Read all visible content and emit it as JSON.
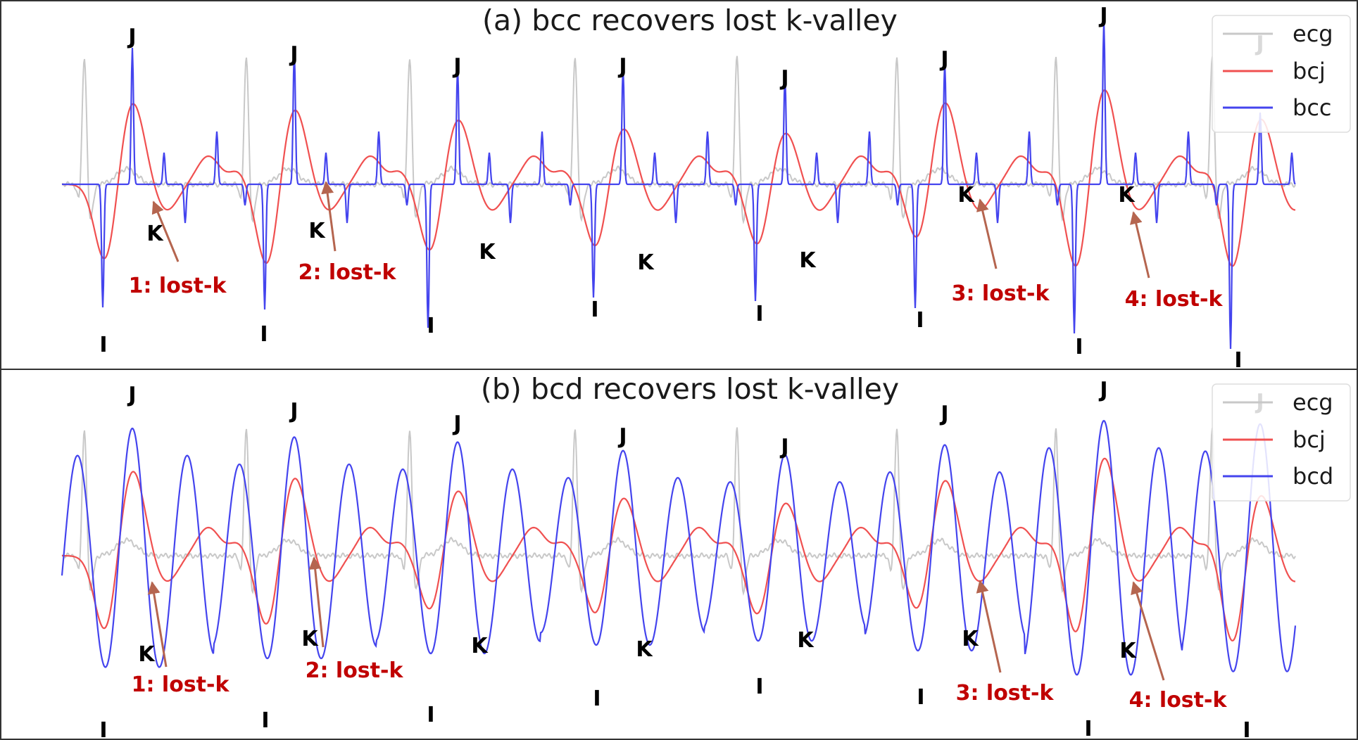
{
  "chart_data": [
    {
      "type": "line",
      "title": "(a) bcc recovers lost k-valley",
      "xlabel": "",
      "ylabel": "",
      "grid": false,
      "legend_placement": "top-right",
      "series": [
        {
          "name": "ecg",
          "color": "#c8c8c8"
        },
        {
          "name": "bcj",
          "color": "#f05050"
        },
        {
          "name": "bcc",
          "color": "#4444ee"
        }
      ],
      "beats": [
        {
          "j_label": "J",
          "k_label": "K",
          "i_label": "I",
          "lost_k": "1: lost-k"
        },
        {
          "j_label": "J",
          "k_label": "K",
          "i_label": "I",
          "lost_k": "2: lost-k"
        },
        {
          "j_label": "J",
          "k_label": "K",
          "i_label": "I",
          "lost_k": ""
        },
        {
          "j_label": "J",
          "k_label": "K",
          "i_label": "I",
          "lost_k": ""
        },
        {
          "j_label": "J",
          "k_label": "K",
          "i_label": "I",
          "lost_k": ""
        },
        {
          "j_label": "J",
          "k_label": "K",
          "i_label": "I",
          "lost_k": "3: lost-k"
        },
        {
          "j_label": "J",
          "k_label": "K",
          "i_label": "I",
          "lost_k": "4: lost-k"
        },
        {
          "j_label": "J",
          "k_label": "",
          "i_label": "I",
          "lost_k": ""
        }
      ]
    },
    {
      "type": "line",
      "title": "(b) bcd recovers lost k-valley",
      "xlabel": "",
      "ylabel": "",
      "grid": false,
      "legend_placement": "top-right",
      "series": [
        {
          "name": "ecg",
          "color": "#c8c8c8"
        },
        {
          "name": "bcj",
          "color": "#f05050"
        },
        {
          "name": "bcd",
          "color": "#4444ee"
        }
      ],
      "beats": [
        {
          "j_label": "J",
          "k_label": "K",
          "i_label": "I",
          "lost_k": "1: lost-k"
        },
        {
          "j_label": "J",
          "k_label": "K",
          "i_label": "I",
          "lost_k": "2: lost-k"
        },
        {
          "j_label": "J",
          "k_label": "K",
          "i_label": "I",
          "lost_k": ""
        },
        {
          "j_label": "J",
          "k_label": "K",
          "i_label": "I",
          "lost_k": ""
        },
        {
          "j_label": "J",
          "k_label": "K",
          "i_label": "I",
          "lost_k": ""
        },
        {
          "j_label": "J",
          "k_label": "K",
          "i_label": "I",
          "lost_k": "3: lost-k"
        },
        {
          "j_label": "J",
          "k_label": "K",
          "i_label": "I",
          "lost_k": "4: lost-k"
        },
        {
          "j_label": "J",
          "k_label": "",
          "i_label": "I",
          "lost_k": ""
        }
      ]
    }
  ],
  "colors": {
    "ecg": "#c8c8c8",
    "bcj": "#f05050",
    "blue": "#4444ee",
    "arrow": "#b5654f",
    "annotation": "#c00000",
    "frame": "#333333"
  }
}
